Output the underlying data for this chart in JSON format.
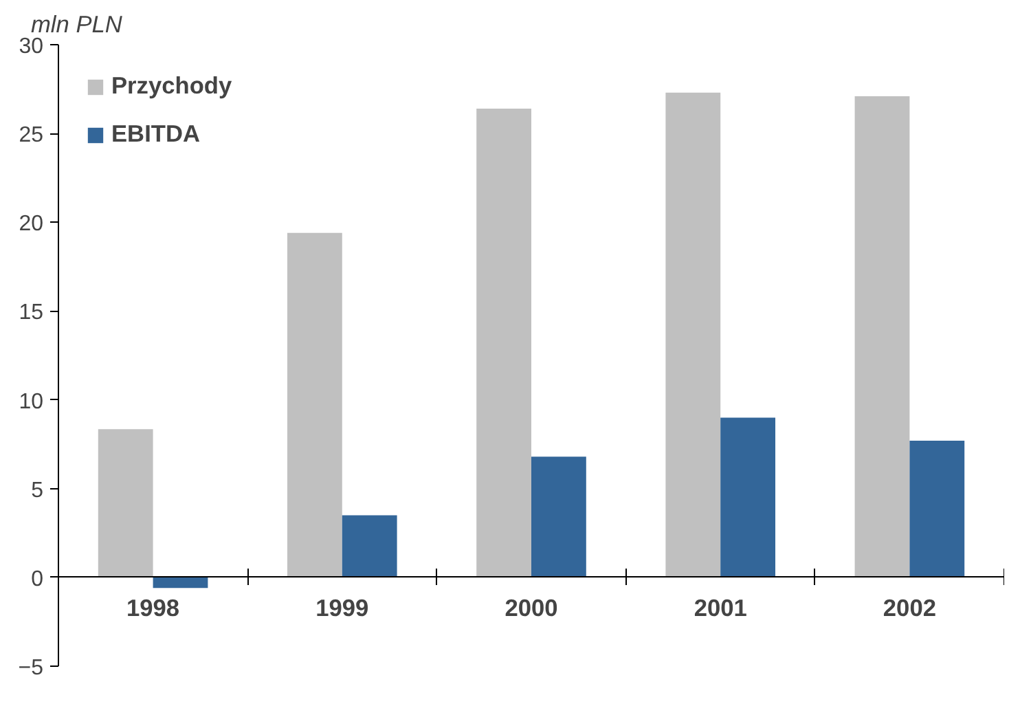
{
  "chart_data": {
    "type": "bar",
    "ylabel": "mln PLN",
    "categories": [
      "1998",
      "1999",
      "2000",
      "2001",
      "2002"
    ],
    "series": [
      {
        "name": "Przychody",
        "color": "#c0c0c0",
        "values": [
          8.35,
          19.4,
          26.4,
          27.3,
          27.1
        ]
      },
      {
        "name": "EBITDA",
        "color": "#336699",
        "values": [
          -0.6,
          3.5,
          6.8,
          9.0,
          7.7
        ]
      }
    ],
    "ylim": [
      -5,
      30
    ],
    "yticks": [
      -5,
      0,
      5,
      10,
      15,
      20,
      25,
      30
    ],
    "grid": false,
    "legend": "top left"
  }
}
